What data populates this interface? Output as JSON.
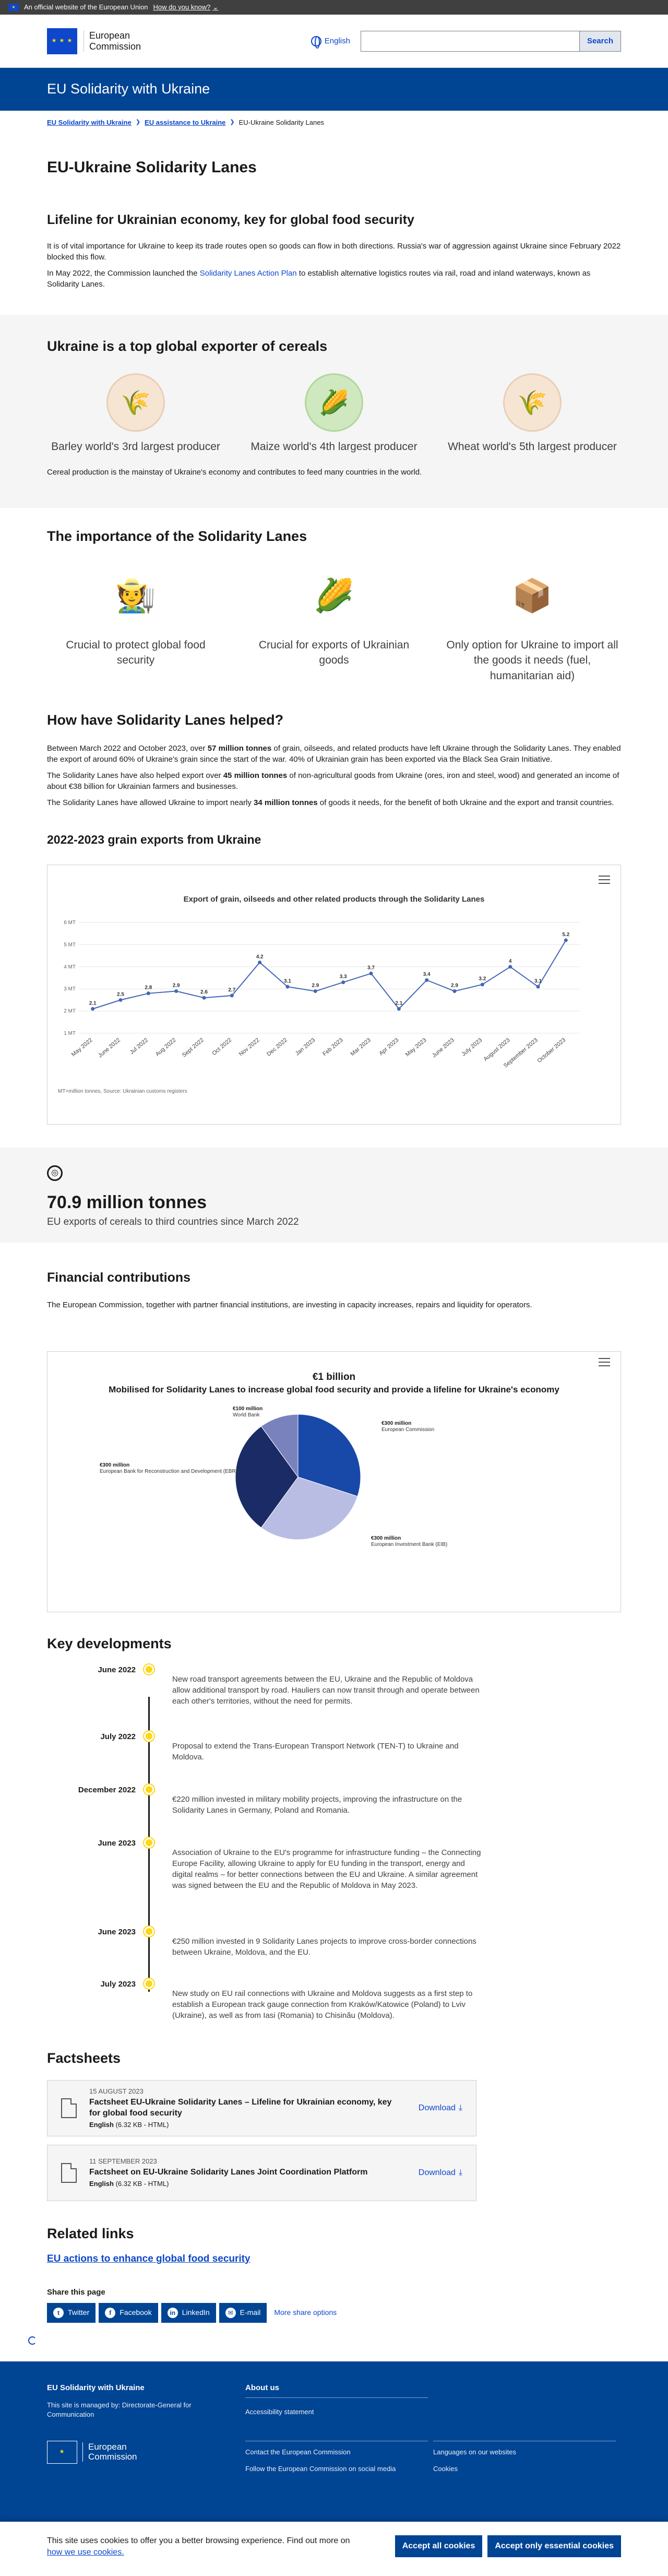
{
  "topbar": {
    "official": "An official website of the European Union",
    "how_know": "How do you know?"
  },
  "header": {
    "logo_line1": "European",
    "logo_line2": "Commission",
    "language": "English",
    "search_placeholder": "",
    "search_button": "Search",
    "site_title": "EU Solidarity with Ukraine"
  },
  "breadcrumb": [
    "EU Solidarity with Ukraine",
    "EU assistance to Ukraine",
    "EU-Ukraine Solidarity Lanes"
  ],
  "page_title": "EU-Ukraine Solidarity Lanes",
  "lifeline": {
    "heading": "Lifeline for Ukrainian economy, key for global food security",
    "p1": "It is of vital importance for Ukraine to keep its trade routes open so goods can flow in both directions. Russia's war of aggression against Ukraine since February 2022 blocked this flow.",
    "p2_before": "In May 2022, the Commission launched the ",
    "p2_link": "Solidarity Lanes Action Plan",
    "p2_after": " to establish alternative logistics routes via rail, road and inland waterways, known as Solidarity Lanes."
  },
  "cereals": {
    "heading": "Ukraine is a top global exporter of cereals",
    "items": [
      {
        "icon": "barley-icon",
        "caption": "Barley world's 3rd largest producer"
      },
      {
        "icon": "maize-icon",
        "caption": "Maize world's 4th largest producer"
      },
      {
        "icon": "wheat-icon",
        "caption": "Wheat world's 5th largest producer"
      }
    ],
    "note": "Cereal production is the mainstay of Ukraine's economy and contributes to feed many countries in the world."
  },
  "importance": {
    "heading": "The importance of the Solidarity Lanes",
    "items": [
      {
        "caption": "Crucial to protect global food security"
      },
      {
        "caption": "Crucial for exports of Ukrainian goods"
      },
      {
        "caption": "Only option for Ukraine to import all the goods it needs (fuel, humanitarian aid)"
      }
    ]
  },
  "helped": {
    "heading": "How have Solidarity Lanes helped?",
    "p1_a": "Between March 2022 and October 2023, over ",
    "p1_b": "57 million tonnes",
    "p1_c": " of grain, oilseeds, and related products have left Ukraine through the Solidarity Lanes. They enabled the export of around 60% of Ukraine's grain since the start of the war. 40% of Ukrainian grain has been exported via the Black Sea Grain Initiative.",
    "p2_a": "The Solidarity Lanes have also helped export over ",
    "p2_b": "45 million tonnes",
    "p2_c": " of non-agricultural goods from Ukraine (ores, iron and steel, wood) and generated an income of about €38 billion for Ukrainian farmers and businesses.",
    "p3_a": "The Solidarity Lanes have allowed Ukraine to import nearly ",
    "p3_b": "34 million tonnes",
    "p3_c": " of goods it needs, for the benefit of both Ukraine and the export and transit countries."
  },
  "grain_heading": "2022-2023 grain exports from Ukraine",
  "chart_data": [
    {
      "type": "line",
      "title": "Export of grain, oilseeds and other related products through the Solidarity Lanes",
      "x": [
        "May 2022",
        "June 2022",
        "Jul 2022",
        "Aug 2022",
        "Sept 2022",
        "Oct 2022",
        "Nov 2022",
        "Dec 2022",
        "Jan 2023",
        "Feb 2023",
        "Mar 2023",
        "Apr 2023",
        "May 2023",
        "June 2023",
        "July 2023",
        "August 2023",
        "September 2023",
        "October 2023"
      ],
      "values": [
        2.1,
        2.5,
        2.8,
        2.9,
        2.6,
        2.7,
        4.2,
        3.1,
        2.9,
        3.3,
        3.7,
        2.1,
        3.4,
        2.9,
        3.2,
        4.0,
        3.1,
        5.2
      ],
      "yticks": [
        "1 MT",
        "2 MT",
        "3 MT",
        "4 MT",
        "5 MT",
        "6 MT"
      ],
      "ylim": [
        1,
        6
      ],
      "source": "MT=million tonnes, Source: Ukrainian customs registers",
      "color": "#4465b6"
    },
    {
      "type": "pie",
      "title": "€1 billion",
      "subtitle": "Mobilised for Solidarity Lanes to increase global food security and provide a lifeline for Ukraine's economy",
      "slices": [
        {
          "value_label": "€300 million",
          "label": "European Commission",
          "value": 300,
          "color": "#1848a8"
        },
        {
          "value_label": "€300 million",
          "label": "European Investment Bank (EIB)",
          "value": 300,
          "color": "#b9bde4"
        },
        {
          "value_label": "€300 million",
          "label": "European Bank for Reconstruction and Development (EBRD)",
          "value": 300,
          "color": "#1a2b66"
        },
        {
          "value_label": "€100 million",
          "label": "World Bank",
          "value": 100,
          "color": "#7a82be"
        }
      ]
    }
  ],
  "stat": {
    "value": "70.9 million tonnes",
    "label": "EU exports of cereals to third countries since March 2022"
  },
  "financial": {
    "heading": "Financial contributions",
    "text": "The European Commission, together with partner financial institutions, are investing in capacity increases, repairs and liquidity for operators."
  },
  "developments": {
    "heading": "Key developments",
    "items": [
      {
        "date": "June 2022",
        "text": "New road transport agreements between the EU, Ukraine and the Republic of Moldova allow additional transport by road. Hauliers can now transit through and operate between each other's territories, without the need for permits."
      },
      {
        "date": "July 2022",
        "text": "Proposal to extend the Trans-European Transport Network (TEN-T) to Ukraine and Moldova."
      },
      {
        "date": "December 2022",
        "text": "€220 million invested in military mobility projects, improving the infrastructure on the Solidarity Lanes in Germany, Poland and Romania."
      },
      {
        "date": "June 2023",
        "text": "Association of Ukraine to the EU's programme for infrastructure funding – the Connecting Europe Facility, allowing Ukraine to apply for EU funding in the transport, energy and digital realms – for better connections between the EU and Ukraine. A similar agreement was signed between the EU and the Republic of Moldova in May 2023."
      },
      {
        "date": "June 2023",
        "text": "€250 million invested in 9 Solidarity Lanes projects to improve cross-border connections between Ukraine, Moldova, and the EU."
      },
      {
        "date": "July 2023",
        "text": "New study on EU rail connections with Ukraine and Moldova suggests as a first step to establish a European track gauge connection from Kraków/Katowice (Poland) to Lviv (Ukraine), as well as from Iasi (Romania) to Chisinău (Moldova)."
      }
    ]
  },
  "factsheets": {
    "heading": "Factsheets",
    "items": [
      {
        "date": "15 AUGUST 2023",
        "title": "Factsheet EU-Ukraine Solidarity Lanes – Lifeline for Ukrainian economy, key for global food security",
        "lang": "English",
        "size": "(6.32 KB - HTML)",
        "download": "Download"
      },
      {
        "date": "11 SEPTEMBER 2023",
        "title": "Factsheet on EU-Ukraine Solidarity Lanes Joint Coordination Platform",
        "lang": "English",
        "size": "(6.32 KB - HTML)",
        "download": "Download"
      }
    ]
  },
  "related": {
    "heading": "Related links",
    "link": "EU actions to enhance global food security"
  },
  "share": {
    "heading": "Share this page",
    "buttons": [
      "Twitter",
      "Facebook",
      "LinkedIn",
      "E-mail"
    ],
    "more": "More share options"
  },
  "footer": {
    "site": "EU Solidarity with Ukraine",
    "managed": "This site is managed by: Directorate-General for Communication",
    "about": "About us",
    "accessibility": "Accessibility statement",
    "contact": "Contact the European Commission",
    "follow": "Follow the European Commission on social media",
    "languages": "Languages on our websites",
    "cookies": "Cookies",
    "logo_line1": "European",
    "logo_line2": "Commission"
  },
  "cookie": {
    "text": "This site uses cookies to offer you a better browsing experience. Find out more on",
    "link": "how we use cookies.",
    "accept_all": "Accept all cookies",
    "accept_essential": "Accept only essential cookies"
  }
}
